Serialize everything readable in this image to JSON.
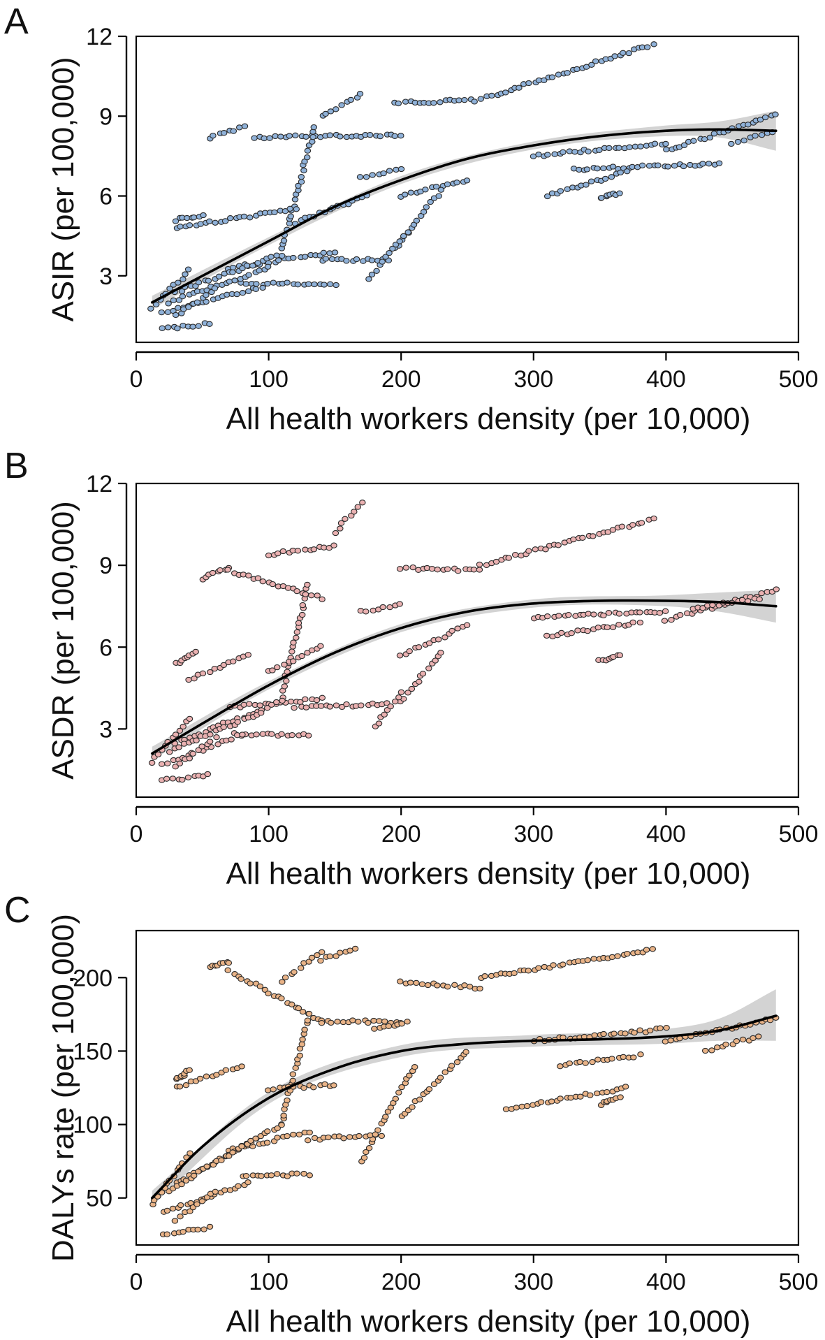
{
  "chart_data": [
    {
      "type": "scatter",
      "panel_label": "A",
      "xlabel": "All health workers density (per 10,000)",
      "ylabel": "ASIR (per 100,000)",
      "xlim": [
        0,
        500
      ],
      "ylim": [
        0.5,
        12
      ],
      "x_ticks": [
        0,
        100,
        200,
        300,
        400,
        500
      ],
      "y_ticks": [
        3,
        6,
        9,
        12
      ],
      "point_color": "#8fb1d8",
      "band_color": "#c8c8c8",
      "trend_line": {
        "x": [
          12,
          50,
          100,
          150,
          200,
          250,
          300,
          350,
          400,
          440,
          483
        ],
        "y": [
          2.0,
          3.0,
          4.3,
          5.6,
          6.6,
          7.4,
          7.9,
          8.25,
          8.45,
          8.5,
          8.45
        ]
      },
      "confidence_band": {
        "x": [
          12,
          100,
          200,
          300,
          400,
          440,
          483
        ],
        "lower": [
          1.75,
          4.15,
          6.45,
          7.75,
          8.25,
          8.2,
          7.7
        ],
        "upper": [
          2.25,
          4.45,
          6.75,
          8.05,
          8.65,
          8.8,
          9.2
        ]
      },
      "clusters": [
        {
          "x0": 55,
          "y0": 8.2,
          "x1": 82,
          "y1": 8.6
        },
        {
          "x0": 90,
          "y0": 8.2,
          "x1": 200,
          "y1": 8.3
        },
        {
          "x0": 195,
          "y0": 9.5,
          "x1": 260,
          "y1": 9.6
        },
        {
          "x0": 265,
          "y0": 9.7,
          "x1": 390,
          "y1": 11.7
        },
        {
          "x0": 140,
          "y0": 9.0,
          "x1": 170,
          "y1": 9.8
        },
        {
          "x0": 110,
          "y0": 4.0,
          "x1": 135,
          "y1": 8.6
        },
        {
          "x0": 30,
          "y0": 4.8,
          "x1": 120,
          "y1": 5.5
        },
        {
          "x0": 30,
          "y0": 5.1,
          "x1": 50,
          "y1": 5.3
        },
        {
          "x0": 120,
          "y0": 5.0,
          "x1": 175,
          "y1": 6.0
        },
        {
          "x0": 170,
          "y0": 6.7,
          "x1": 200,
          "y1": 7.0
        },
        {
          "x0": 200,
          "y0": 6.0,
          "x1": 250,
          "y1": 6.6
        },
        {
          "x0": 195,
          "y0": 4.0,
          "x1": 230,
          "y1": 6.2
        },
        {
          "x0": 70,
          "y0": 3.3,
          "x1": 150,
          "y1": 3.9
        },
        {
          "x0": 140,
          "y0": 3.6,
          "x1": 190,
          "y1": 3.6
        },
        {
          "x0": 175,
          "y0": 2.9,
          "x1": 205,
          "y1": 4.6
        },
        {
          "x0": 80,
          "y0": 2.7,
          "x1": 150,
          "y1": 2.7
        },
        {
          "x0": 30,
          "y0": 2.4,
          "x1": 110,
          "y1": 3.8
        },
        {
          "x0": 25,
          "y0": 2.0,
          "x1": 100,
          "y1": 3.3
        },
        {
          "x0": 20,
          "y0": 1.6,
          "x1": 95,
          "y1": 2.6
        },
        {
          "x0": 30,
          "y0": 1.5,
          "x1": 60,
          "y1": 2.5
        },
        {
          "x0": 20,
          "y0": 1.0,
          "x1": 55,
          "y1": 1.2
        },
        {
          "x0": 12,
          "y0": 1.8,
          "x1": 40,
          "y1": 3.2
        },
        {
          "x0": 300,
          "y0": 7.5,
          "x1": 400,
          "y1": 8.0
        },
        {
          "x0": 400,
          "y0": 7.7,
          "x1": 483,
          "y1": 9.1
        },
        {
          "x0": 330,
          "y0": 7.0,
          "x1": 440,
          "y1": 7.2
        },
        {
          "x0": 310,
          "y0": 6.0,
          "x1": 370,
          "y1": 6.9
        },
        {
          "x0": 350,
          "y0": 5.9,
          "x1": 365,
          "y1": 6.1
        },
        {
          "x0": 450,
          "y0": 8.0,
          "x1": 480,
          "y1": 8.4
        }
      ]
    },
    {
      "type": "scatter",
      "panel_label": "B",
      "xlabel": "All health workers density (per 10,000)",
      "ylabel": "ASDR (per 100,000)",
      "xlim": [
        0,
        500
      ],
      "ylim": [
        0.5,
        12
      ],
      "x_ticks": [
        0,
        100,
        200,
        300,
        400,
        500
      ],
      "y_ticks": [
        3,
        6,
        9,
        12
      ],
      "point_color": "#eab1b1",
      "band_color": "#c8c8c8",
      "trend_line": {
        "x": [
          12,
          50,
          100,
          150,
          200,
          250,
          300,
          350,
          400,
          440,
          483
        ],
        "y": [
          2.1,
          3.2,
          4.6,
          5.8,
          6.7,
          7.3,
          7.6,
          7.7,
          7.7,
          7.65,
          7.5
        ]
      },
      "confidence_band": {
        "x": [
          12,
          100,
          200,
          300,
          400,
          440,
          483
        ],
        "lower": [
          1.85,
          4.45,
          6.55,
          7.45,
          7.5,
          7.3,
          6.9
        ],
        "upper": [
          2.35,
          4.75,
          6.85,
          7.75,
          7.9,
          8.0,
          8.1
        ]
      },
      "clusters": [
        {
          "x0": 50,
          "y0": 8.5,
          "x1": 70,
          "y1": 8.9
        },
        {
          "x0": 70,
          "y0": 8.8,
          "x1": 140,
          "y1": 7.8
        },
        {
          "x0": 150,
          "y0": 10.2,
          "x1": 170,
          "y1": 11.3
        },
        {
          "x0": 100,
          "y0": 9.4,
          "x1": 150,
          "y1": 9.7
        },
        {
          "x0": 200,
          "y0": 8.9,
          "x1": 260,
          "y1": 8.8
        },
        {
          "x0": 260,
          "y0": 9.0,
          "x1": 390,
          "y1": 10.7
        },
        {
          "x0": 110,
          "y0": 4.2,
          "x1": 130,
          "y1": 8.3
        },
        {
          "x0": 40,
          "y0": 4.8,
          "x1": 85,
          "y1": 5.7
        },
        {
          "x0": 30,
          "y0": 5.4,
          "x1": 45,
          "y1": 5.8
        },
        {
          "x0": 100,
          "y0": 5.1,
          "x1": 140,
          "y1": 6.0
        },
        {
          "x0": 170,
          "y0": 7.3,
          "x1": 200,
          "y1": 7.6
        },
        {
          "x0": 200,
          "y0": 5.7,
          "x1": 250,
          "y1": 6.8
        },
        {
          "x0": 200,
          "y0": 4.0,
          "x1": 230,
          "y1": 5.8
        },
        {
          "x0": 70,
          "y0": 3.8,
          "x1": 140,
          "y1": 4.1
        },
        {
          "x0": 120,
          "y0": 3.8,
          "x1": 190,
          "y1": 3.9
        },
        {
          "x0": 180,
          "y0": 3.1,
          "x1": 200,
          "y1": 4.3
        },
        {
          "x0": 75,
          "y0": 2.8,
          "x1": 130,
          "y1": 2.8
        },
        {
          "x0": 30,
          "y0": 2.5,
          "x1": 110,
          "y1": 4.0
        },
        {
          "x0": 25,
          "y0": 2.2,
          "x1": 95,
          "y1": 3.6
        },
        {
          "x0": 20,
          "y0": 1.7,
          "x1": 80,
          "y1": 2.8
        },
        {
          "x0": 30,
          "y0": 1.6,
          "x1": 60,
          "y1": 2.7
        },
        {
          "x0": 20,
          "y0": 1.1,
          "x1": 55,
          "y1": 1.3
        },
        {
          "x0": 12,
          "y0": 1.8,
          "x1": 40,
          "y1": 3.4
        },
        {
          "x0": 300,
          "y0": 7.1,
          "x1": 400,
          "y1": 7.3
        },
        {
          "x0": 400,
          "y0": 7.0,
          "x1": 483,
          "y1": 8.1
        },
        {
          "x0": 310,
          "y0": 6.4,
          "x1": 380,
          "y1": 6.9
        },
        {
          "x0": 350,
          "y0": 5.5,
          "x1": 365,
          "y1": 5.7
        },
        {
          "x0": 420,
          "y0": 7.4,
          "x1": 470,
          "y1": 7.8
        }
      ]
    },
    {
      "type": "scatter",
      "panel_label": "C",
      "xlabel": "All health workers density (per 10,000)",
      "ylabel": "DALYs rate (per 100,000)",
      "xlim": [
        0,
        500
      ],
      "ylim": [
        18,
        232
      ],
      "x_ticks": [
        0,
        100,
        200,
        300,
        400,
        500
      ],
      "y_ticks": [
        50,
        100,
        150,
        200
      ],
      "point_color": "#e9b387",
      "band_color": "#c8c8c8",
      "trend_line": {
        "x": [
          12,
          50,
          100,
          150,
          200,
          250,
          300,
          350,
          400,
          440,
          483
        ],
        "y": [
          50,
          85,
          118,
          138,
          150,
          155,
          157,
          158,
          160,
          164,
          174
        ]
      },
      "confidence_band": {
        "x": [
          12,
          100,
          200,
          300,
          400,
          440,
          483
        ],
        "lower": [
          45,
          114,
          146,
          153,
          155,
          157,
          157
        ],
        "upper": [
          55,
          122,
          154,
          161,
          165,
          172,
          192
        ]
      },
      "clusters": [
        {
          "x0": 55,
          "y0": 208,
          "x1": 70,
          "y1": 210
        },
        {
          "x0": 70,
          "y0": 205,
          "x1": 140,
          "y1": 170
        },
        {
          "x0": 140,
          "y0": 212,
          "x1": 165,
          "y1": 220
        },
        {
          "x0": 110,
          "y0": 198,
          "x1": 140,
          "y1": 218
        },
        {
          "x0": 200,
          "y0": 197,
          "x1": 260,
          "y1": 193
        },
        {
          "x0": 260,
          "y0": 200,
          "x1": 390,
          "y1": 219
        },
        {
          "x0": 110,
          "y0": 100,
          "x1": 130,
          "y1": 175
        },
        {
          "x0": 140,
          "y0": 170,
          "x1": 200,
          "y1": 170
        },
        {
          "x0": 30,
          "y0": 125,
          "x1": 80,
          "y1": 140
        },
        {
          "x0": 30,
          "y0": 130,
          "x1": 40,
          "y1": 137
        },
        {
          "x0": 100,
          "y0": 124,
          "x1": 150,
          "y1": 127
        },
        {
          "x0": 180,
          "y0": 165,
          "x1": 205,
          "y1": 170
        },
        {
          "x0": 200,
          "y0": 105,
          "x1": 250,
          "y1": 150
        },
        {
          "x0": 170,
          "y0": 75,
          "x1": 210,
          "y1": 140
        },
        {
          "x0": 70,
          "y0": 82,
          "x1": 130,
          "y1": 95
        },
        {
          "x0": 130,
          "y0": 90,
          "x1": 185,
          "y1": 93
        },
        {
          "x0": 80,
          "y0": 65,
          "x1": 130,
          "y1": 66
        },
        {
          "x0": 30,
          "y0": 60,
          "x1": 110,
          "y1": 100
        },
        {
          "x0": 25,
          "y0": 55,
          "x1": 90,
          "y1": 90
        },
        {
          "x0": 20,
          "y0": 40,
          "x1": 85,
          "y1": 60
        },
        {
          "x0": 30,
          "y0": 35,
          "x1": 60,
          "y1": 55
        },
        {
          "x0": 20,
          "y0": 25,
          "x1": 55,
          "y1": 30
        },
        {
          "x0": 12,
          "y0": 45,
          "x1": 40,
          "y1": 80
        },
        {
          "x0": 300,
          "y0": 157,
          "x1": 400,
          "y1": 165
        },
        {
          "x0": 400,
          "y0": 157,
          "x1": 483,
          "y1": 172
        },
        {
          "x0": 320,
          "y0": 140,
          "x1": 380,
          "y1": 147
        },
        {
          "x0": 280,
          "y0": 110,
          "x1": 370,
          "y1": 125
        },
        {
          "x0": 350,
          "y0": 114,
          "x1": 365,
          "y1": 118
        },
        {
          "x0": 430,
          "y0": 150,
          "x1": 470,
          "y1": 160
        }
      ]
    }
  ]
}
